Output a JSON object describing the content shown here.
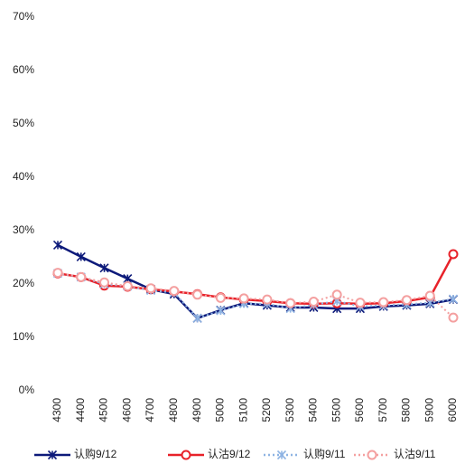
{
  "chart_data": {
    "type": "line",
    "categories": [
      "4300",
      "4400",
      "4500",
      "4600",
      "4700",
      "4800",
      "4900",
      "5000",
      "5100",
      "5200",
      "5300",
      "5400",
      "5500",
      "5600",
      "5700",
      "5800",
      "5900",
      "6000"
    ],
    "series": [
      {
        "name": "认购9/12",
        "color": "#0d1a7a",
        "line_style": "solid",
        "marker": "star",
        "values": [
          27.3,
          25.1,
          23,
          21,
          19,
          18.1,
          13.6,
          15.1,
          16.4,
          16,
          15.6,
          15.6,
          15.4,
          15.4,
          15.8,
          16,
          16.3,
          17.1
        ]
      },
      {
        "name": "认沽9/12",
        "color": "#e8222a",
        "line_style": "solid",
        "marker": "circle",
        "values": [
          22,
          21.3,
          19.7,
          19.5,
          19,
          18.6,
          18.1,
          17.5,
          17.1,
          16.8,
          16.4,
          16.3,
          16.4,
          16.3,
          16.4,
          16.8,
          17.5,
          25.6
        ]
      },
      {
        "name": "认购9/11",
        "color": "#8fb4e3",
        "line_style": "dotted",
        "marker": "star",
        "values": [
          22,
          21.3,
          20,
          19.6,
          18.8,
          18.4,
          13.6,
          15,
          16.3,
          16.3,
          15.4,
          16.1,
          16.8,
          15.8,
          16,
          16.2,
          16.5,
          17.2
        ]
      },
      {
        "name": "认沽9/11",
        "color": "#f4a0a0",
        "line_style": "dotted",
        "marker": "circle",
        "values": [
          22.1,
          21.3,
          20.3,
          19.6,
          19.2,
          18.7,
          18,
          17.4,
          17.3,
          17.1,
          16.4,
          16.7,
          18,
          16.5,
          16.6,
          17,
          17.8,
          13.7
        ]
      }
    ],
    "ylim": [
      0,
      70
    ],
    "yticks": [
      {
        "value": 0,
        "label": "0%"
      },
      {
        "value": 10,
        "label": "10%"
      },
      {
        "value": 20,
        "label": "20%"
      },
      {
        "value": 30,
        "label": "30%"
      },
      {
        "value": 40,
        "label": "40%"
      },
      {
        "value": 50,
        "label": "50%"
      },
      {
        "value": 60,
        "label": "60%"
      },
      {
        "value": 70,
        "label": "70%"
      }
    ],
    "grid": false,
    "legend": "bottom"
  }
}
